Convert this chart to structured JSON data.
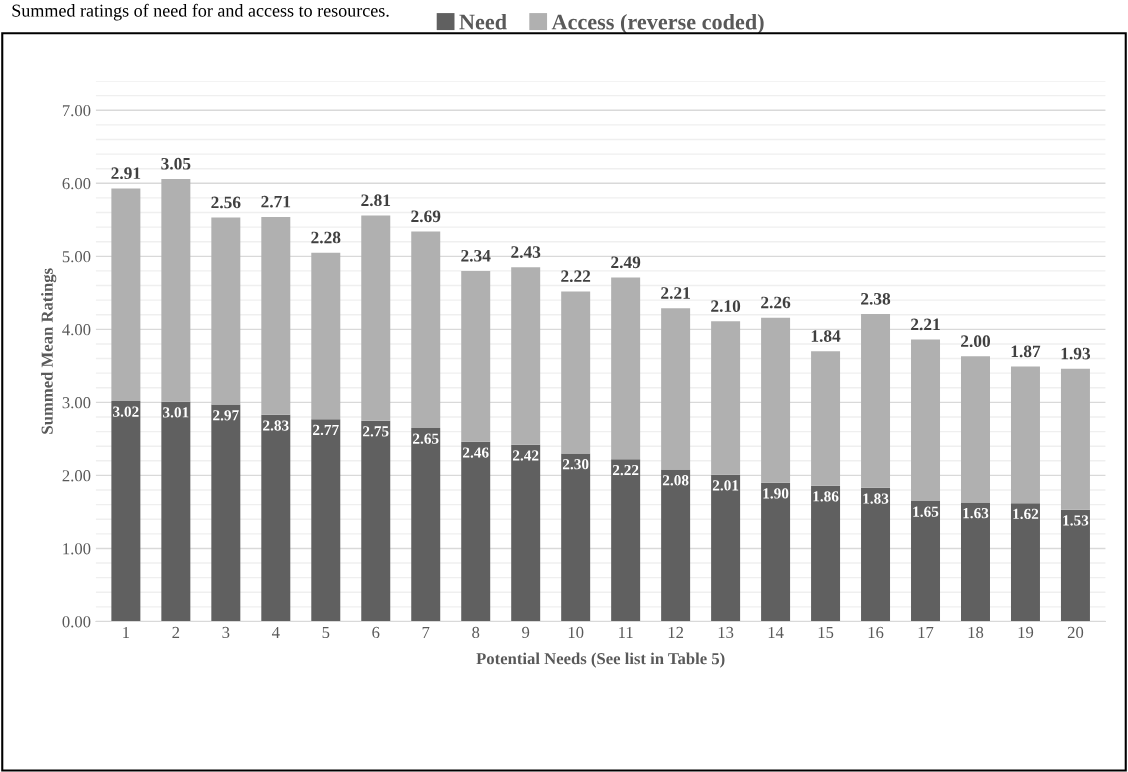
{
  "chart_data": {
    "type": "bar",
    "title": "Summed ratings of need for and access to resources.",
    "xlabel": "Potential Needs (See list in Table 5)",
    "ylabel": "Summed Mean Ratings",
    "categories": [
      "1",
      "2",
      "3",
      "4",
      "5",
      "6",
      "7",
      "8",
      "9",
      "10",
      "11",
      "12",
      "13",
      "14",
      "15",
      "16",
      "17",
      "18",
      "19",
      "20"
    ],
    "series": [
      {
        "name": "Need",
        "color": "#606060",
        "values": [
          3.02,
          3.01,
          2.97,
          2.83,
          2.77,
          2.75,
          2.65,
          2.46,
          2.42,
          2.3,
          2.22,
          2.08,
          2.01,
          1.9,
          1.86,
          1.83,
          1.65,
          1.63,
          1.62,
          1.53
        ],
        "value_labels": [
          "3.02",
          "3.01",
          "2.97",
          "2.83",
          "2.77",
          "2.75",
          "2.65",
          "2.46",
          "2.42",
          "2.30",
          "2.22",
          "2.08",
          "2.01",
          "1.90",
          "1.86",
          "1.83",
          "1.65",
          "1.63",
          "1.62",
          "1.53"
        ]
      },
      {
        "name": "Access (reverse coded)",
        "color": "#b0b0b0",
        "values": [
          2.91,
          3.05,
          2.56,
          2.71,
          2.28,
          2.81,
          2.69,
          2.34,
          2.43,
          2.22,
          2.49,
          2.21,
          2.1,
          2.26,
          1.84,
          2.38,
          2.21,
          2.0,
          1.87,
          1.93
        ],
        "value_labels": [
          "2.91",
          "3.05",
          "2.56",
          "2.71",
          "2.28",
          "2.81",
          "2.69",
          "2.34",
          "2.43",
          "2.22",
          "2.49",
          "2.21",
          "2.10",
          "2.26",
          "1.84",
          "2.38",
          "2.21",
          "2.00",
          "1.87",
          "1.93"
        ]
      }
    ],
    "stacked": true,
    "ylim": [
      0,
      7.4
    ],
    "yticks": [
      {
        "value": 0,
        "label": "0.00"
      },
      {
        "value": 1,
        "label": "1.00"
      },
      {
        "value": 2,
        "label": "2.00"
      },
      {
        "value": 3,
        "label": "3.00"
      },
      {
        "value": 4,
        "label": "4.00"
      },
      {
        "value": 5,
        "label": "5.00"
      },
      {
        "value": 6,
        "label": "6.00"
      },
      {
        "value": 7,
        "label": "7.00"
      }
    ],
    "grid": "y",
    "legend": "top"
  }
}
